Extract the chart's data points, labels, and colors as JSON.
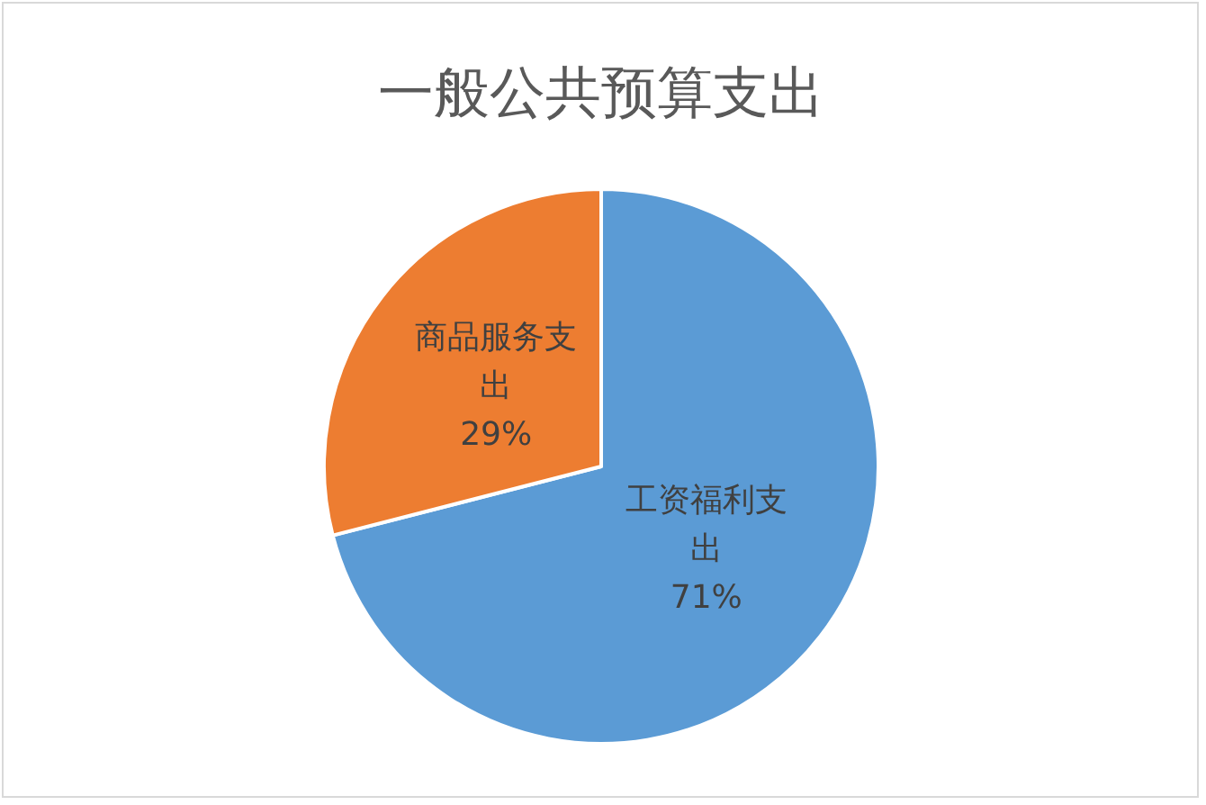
{
  "chart_data": {
    "type": "pie",
    "title": "一般公共预算支出",
    "categories": [
      "工资福利支出",
      "商品服务支出"
    ],
    "values": [
      71,
      29
    ],
    "colors": [
      "#5b9bd5",
      "#ed7d31"
    ],
    "value_labels": [
      "71%",
      "29%"
    ],
    "legend": false
  }
}
